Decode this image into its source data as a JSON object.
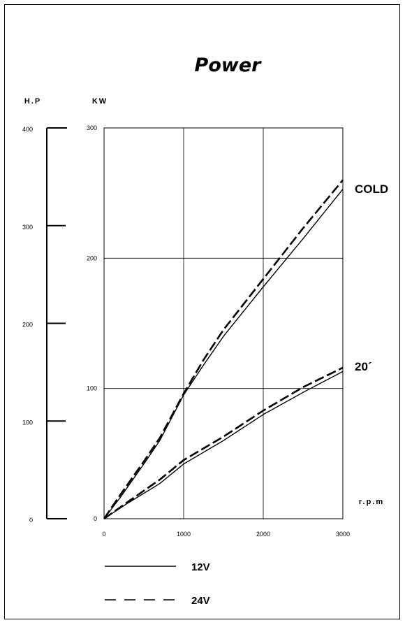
{
  "chart_data": {
    "type": "line",
    "title": "Power",
    "hp_axis": {
      "label": "H.P",
      "ticks": [
        "0",
        "100",
        "200",
        "300",
        "400"
      ],
      "ylim": [
        0,
        400
      ]
    },
    "kw_axis": {
      "label": "KW",
      "ticks": [
        "0",
        "100",
        "200",
        "300"
      ],
      "ylim": [
        0,
        300
      ]
    },
    "x_axis": {
      "label": "r.p.m",
      "ticks": [
        "0",
        "1000",
        "2000",
        "3000"
      ],
      "xlim": [
        0,
        3000
      ]
    },
    "grid": true,
    "curve_labels": {
      "cold": "COLD",
      "warm": "20´"
    },
    "legend": {
      "solid": "12V",
      "dashed": "24V",
      "placement": "bottom-left"
    },
    "series": [
      {
        "name": "12V",
        "group": "cold",
        "style": "solid",
        "x": [
          0,
          200,
          500,
          700,
          1000,
          1250,
          1500,
          2000,
          2500,
          3000
        ],
        "y": [
          0,
          16,
          42,
          60,
          95,
          118,
          140,
          178,
          215,
          253
        ]
      },
      {
        "name": "24V",
        "group": "cold",
        "style": "dashed",
        "x": [
          0,
          200,
          500,
          700,
          1000,
          1250,
          1500,
          2000,
          2500,
          3000
        ],
        "y": [
          0,
          18,
          44,
          62,
          96,
          122,
          145,
          184,
          223,
          260
        ]
      },
      {
        "name": "12V",
        "group": "warm",
        "style": "solid",
        "x": [
          0,
          300,
          700,
          1000,
          1500,
          2000,
          2500,
          3000
        ],
        "y": [
          0,
          12,
          27,
          42,
          60,
          80,
          97,
          113
        ]
      },
      {
        "name": "24V",
        "group": "warm",
        "style": "dashed",
        "x": [
          0,
          300,
          700,
          1000,
          1500,
          2000,
          2500,
          3000
        ],
        "y": [
          0,
          13,
          30,
          45,
          63,
          83,
          101,
          116
        ]
      }
    ]
  }
}
